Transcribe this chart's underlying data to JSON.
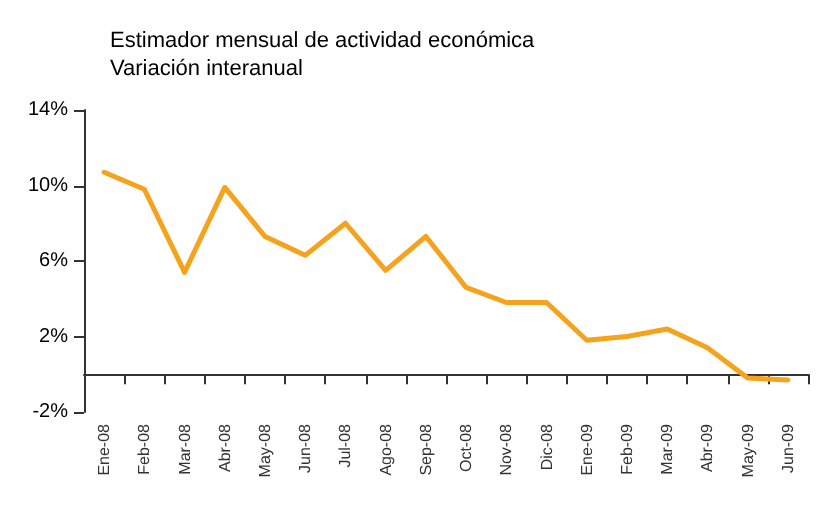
{
  "chart_data": {
    "type": "line",
    "title": "Estimador mensual de actividad económica",
    "subtitle": "Variación interanual",
    "categories": [
      "Ene-08",
      "Feb-08",
      "Mar-08",
      "Abr-08",
      "May-08",
      "Jun-08",
      "Jul-08",
      "Ago-08",
      "Sep-08",
      "Oct-08",
      "Nov-08",
      "Dic-08",
      "Ene-09",
      "Feb-09",
      "Mar-09",
      "Abr-09",
      "May-09",
      "Jun-09"
    ],
    "series": [
      {
        "color": "#f5a21c",
        "values": [
          10.7,
          9.8,
          5.4,
          9.9,
          7.3,
          6.3,
          8.0,
          5.5,
          7.3,
          4.6,
          3.8,
          3.8,
          1.8,
          2.0,
          2.4,
          1.4,
          -0.2,
          -0.3
        ]
      }
    ],
    "ylim": [
      -2,
      14
    ],
    "yticks": [
      {
        "value": -2,
        "label": "-2%"
      },
      {
        "value": 2,
        "label": "2%"
      },
      {
        "value": 6,
        "label": "6%"
      },
      {
        "value": 10,
        "label": "10%"
      },
      {
        "value": 14,
        "label": "14%"
      }
    ],
    "grid": false,
    "marker": "none",
    "line_style": "solid"
  }
}
